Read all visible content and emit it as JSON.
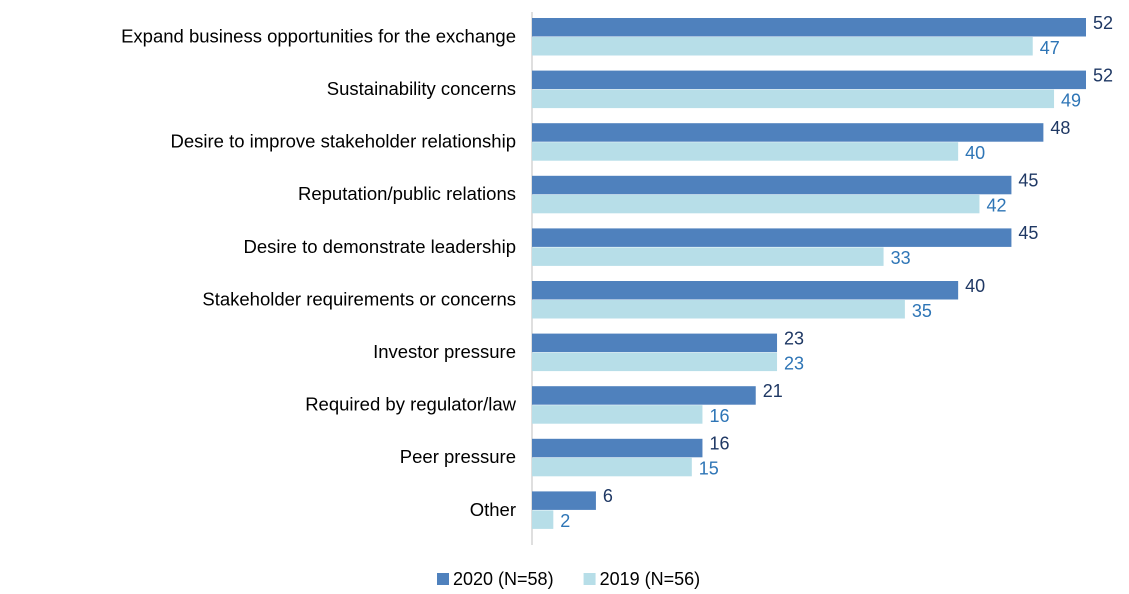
{
  "chart_data": {
    "type": "bar",
    "orientation": "horizontal",
    "categories": [
      "Expand business opportunities for the exchange",
      "Sustainability concerns",
      "Desire to improve stakeholder relationship",
      "Reputation/public relations",
      "Desire to demonstrate leadership",
      "Stakeholder requirements or concerns",
      "Investor pressure",
      "Required by regulator/law",
      "Peer pressure",
      "Other"
    ],
    "series": [
      {
        "name": "2020 (N=58)",
        "color": "#4f81bd",
        "label_color": "#1f3864",
        "values": [
          52,
          52,
          48,
          45,
          45,
          40,
          23,
          21,
          16,
          6
        ]
      },
      {
        "name": "2019 (N=56)",
        "color": "#b7dee8",
        "label_color": "#2e75b6",
        "values": [
          47,
          49,
          40,
          42,
          33,
          35,
          23,
          16,
          15,
          2
        ]
      }
    ],
    "xlim": [
      0,
      52
    ],
    "legend": "bottom"
  }
}
